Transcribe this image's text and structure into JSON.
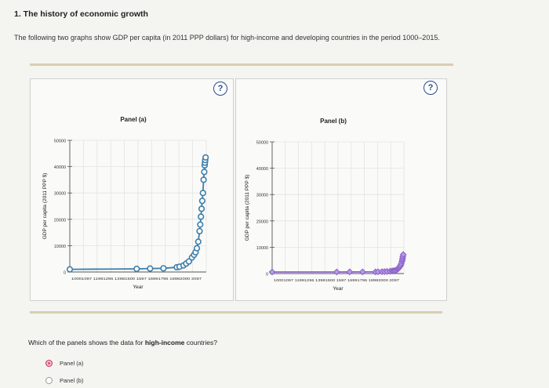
{
  "question_title": "1. The history of economic growth",
  "intro_text": "The following two graphs show GDP per capita (in 2011 PPP dollars) for high-income and developing countries in the period 1000–2015.",
  "help_label": "?",
  "question_text_prefix": "Which of the panels shows the data for ",
  "question_text_emphasis": "high-income",
  "question_text_suffix": " countries?",
  "options": [
    {
      "label": "Panel (a)",
      "selected": true
    },
    {
      "label": "Panel (b)",
      "selected": false
    }
  ],
  "colors": {
    "series_a": "#3d7eaa",
    "series_b": "#8a63c9",
    "radio_selected": "#e24f73",
    "help_icon": "#2a4a8a"
  },
  "chart_data": [
    {
      "type": "line",
      "title": "Panel (a)",
      "xlabel": "Year",
      "ylabel": "GDP per capita (2011 PPP $)",
      "ylim": [
        0,
        50000
      ],
      "yticks": [
        "0",
        "10000",
        "20000",
        "30000",
        "40000",
        "50000"
      ],
      "xtick_labels": "10001097 11991296 13981500 1597 16991796 18982000 2097",
      "x": [
        1000,
        1500,
        1600,
        1700,
        1800,
        1820,
        1850,
        1870,
        1890,
        1913,
        1929,
        1940,
        1950,
        1960,
        1970,
        1975,
        1980,
        1985,
        1990,
        1995,
        2000,
        2005,
        2008,
        2010,
        2012,
        2015
      ],
      "series": [
        {
          "values": [
            1000,
            1200,
            1300,
            1400,
            1800,
            2000,
            2500,
            3200,
            4000,
            5500,
            6500,
            7500,
            9000,
            11500,
            15500,
            18000,
            21000,
            24000,
            27000,
            30000,
            35000,
            38000,
            40500,
            41500,
            42500,
            43500
          ]
        }
      ],
      "grid": true
    },
    {
      "type": "line",
      "title": "Panel (b)",
      "xlabel": "Year",
      "ylabel": "GDP per capita (2011 PPP $)",
      "ylim": [
        0,
        50000
      ],
      "yticks": [
        "0",
        "10000",
        "20000",
        "30000",
        "40000",
        "50000"
      ],
      "xtick_labels": "10001097 11991296 13981500 1597 16991796 18982000 2097",
      "x": [
        1000,
        1500,
        1600,
        1700,
        1800,
        1820,
        1850,
        1870,
        1890,
        1913,
        1929,
        1940,
        1950,
        1960,
        1970,
        1975,
        1980,
        1985,
        1990,
        1995,
        2000,
        2005,
        2008,
        2010,
        2012,
        2015
      ],
      "series": [
        {
          "values": [
            600,
            600,
            620,
            640,
            650,
            680,
            700,
            750,
            800,
            900,
            1000,
            1050,
            1100,
            1300,
            1600,
            1800,
            2100,
            2400,
            2800,
            3200,
            3800,
            4600,
            5200,
            5800,
            6500,
            7200
          ]
        }
      ],
      "grid": true
    }
  ]
}
